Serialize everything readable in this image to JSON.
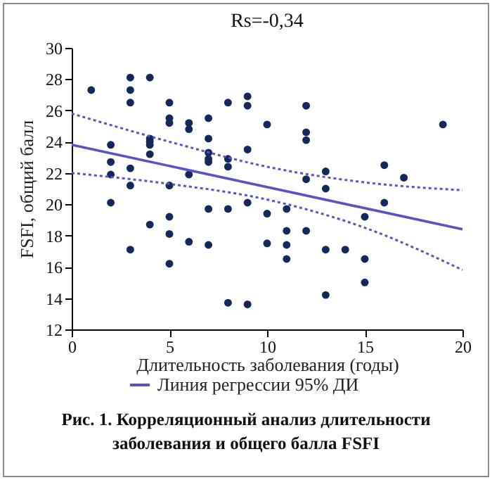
{
  "chart_data": {
    "type": "scatter",
    "title": "Rs=-0,34",
    "xlabel": "Длительность заболевания (годы)",
    "ylabel": "FSFI, общий балл",
    "xlim": [
      0,
      20
    ],
    "xticks": [
      0,
      5,
      10,
      15,
      20
    ],
    "ylim": [
      12,
      30
    ],
    "yticks": [
      12,
      14,
      16,
      18,
      20,
      22,
      24,
      26,
      28,
      30
    ],
    "grid": false,
    "legend": "bottom",
    "annotations": [
      "Рис. 1. Корреляционный анализ длительности заболевания и общего балла FSFI"
    ],
    "series": [
      {
        "marker": "circle",
        "color": "#14285a",
        "x": [
          1,
          3,
          3,
          3,
          4,
          5,
          5,
          5,
          6,
          6,
          7,
          8,
          9,
          9,
          10,
          12,
          12,
          12,
          19,
          2,
          4,
          4,
          4,
          4,
          7,
          7,
          7,
          7,
          8,
          8,
          9,
          2,
          3,
          6,
          2,
          13,
          16,
          17,
          12,
          3,
          5,
          13,
          2,
          7,
          8,
          9,
          10,
          11,
          16,
          5,
          15,
          4,
          5,
          11,
          12,
          6,
          7,
          10,
          11,
          3,
          13,
          14,
          11,
          15,
          5,
          15,
          13,
          8,
          9
        ],
        "values": [
          27.3,
          28.1,
          27.3,
          26.5,
          28.1,
          26.5,
          25.5,
          25.2,
          25.2,
          24.8,
          25.5,
          26.5,
          26.9,
          26.3,
          25.1,
          26.3,
          24.6,
          24.1,
          25.1,
          23.8,
          24.2,
          24.0,
          23.8,
          23.2,
          24.2,
          23.3,
          22.9,
          22.7,
          22.9,
          22.4,
          23.5,
          22.7,
          22.3,
          21.9,
          21.9,
          22.1,
          22.5,
          21.7,
          21.6,
          21.2,
          21.2,
          21.0,
          20.1,
          19.7,
          19.7,
          20.1,
          19.4,
          19.7,
          20.1,
          19.2,
          19.2,
          18.7,
          18.1,
          18.3,
          18.3,
          17.6,
          17.4,
          17.5,
          17.4,
          17.1,
          17.1,
          17.1,
          16.5,
          16.5,
          16.2,
          15.0,
          14.2,
          13.7,
          13.6
        ]
      },
      {
        "type": "line",
        "name": "Линия регрессии 95% ДИ",
        "color": "#5b52c8",
        "line_style": "solid",
        "x": [
          0,
          20
        ],
        "values": [
          23.8,
          18.4
        ]
      },
      {
        "type": "line",
        "color": "#5b52c8",
        "line_style": "dotted",
        "x": [
          0,
          5,
          10,
          15,
          20
        ],
        "values": [
          25.8,
          24.0,
          22.4,
          21.4,
          20.9
        ]
      },
      {
        "type": "line",
        "color": "#5b52c8",
        "line_style": "dotted",
        "x": [
          0,
          5,
          10,
          15,
          20
        ],
        "values": [
          22.0,
          21.3,
          20.3,
          18.5,
          15.8
        ]
      }
    ]
  }
}
